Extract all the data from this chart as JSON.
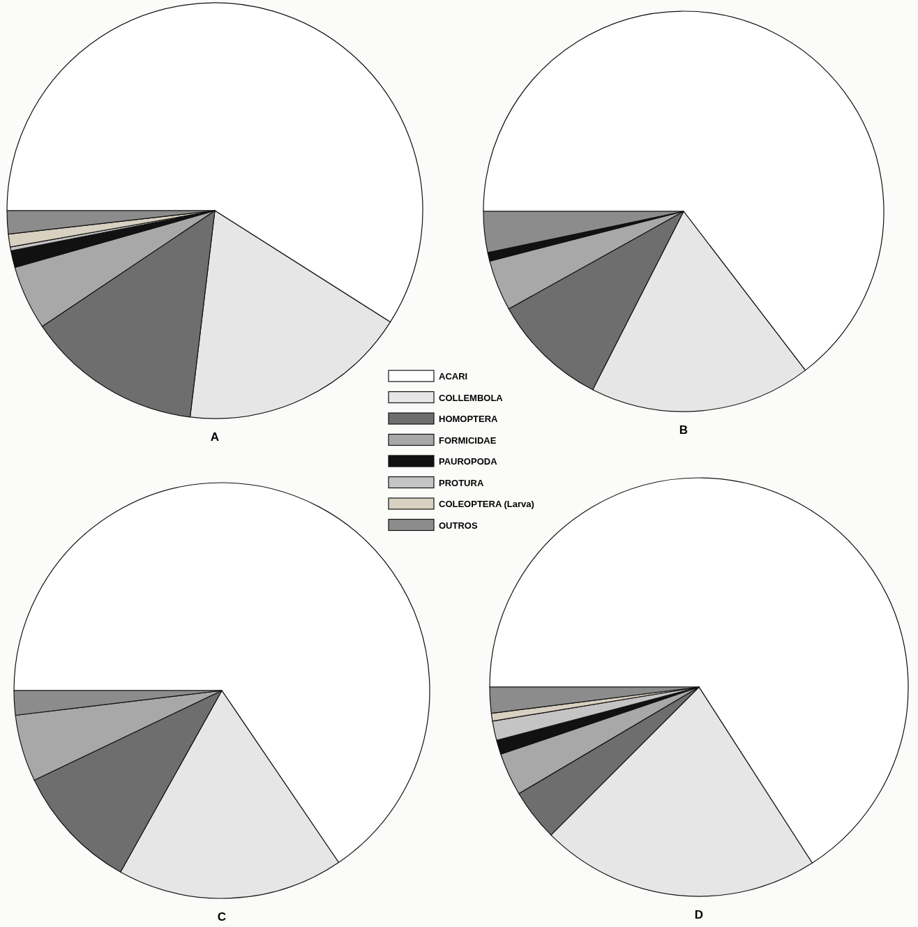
{
  "chart_data": [
    {
      "type": "pie",
      "title": "A",
      "legend": "right",
      "categories": [
        "ACARI",
        "COLLEMBOLA",
        "HOMOPTERA",
        "FORMICIDAE",
        "PAUROPODA",
        "PROTURA",
        "COLEOPTERA (Larva)",
        "OUTROS"
      ],
      "values": [
        59.0,
        17.9,
        13.7,
        5.0,
        1.3,
        0.3,
        1.0,
        1.8
      ],
      "colors": [
        "#ffffff",
        "#e6e6e6",
        "#6e6e6e",
        "#a8a8a8",
        "#111111",
        "#c4c4c4",
        "#d8d0c0",
        "#8c8c8c"
      ]
    },
    {
      "type": "pie",
      "title": "B",
      "categories": [
        null,
        null,
        null,
        null,
        null,
        null,
        null,
        null
      ],
      "values": [
        64.6,
        17.9,
        9.4,
        4.1,
        0.7,
        0,
        0,
        3.3
      ],
      "colors": [
        "#ffffff",
        "#e6e6e6",
        "#6e6e6e",
        "#a8a8a8",
        "#111111",
        "#c4c4c4",
        "#d8d0c0",
        "#8c8c8c"
      ]
    },
    {
      "type": "pie",
      "title": "C",
      "categories": [
        null,
        null,
        null,
        null,
        null,
        null,
        null,
        null
      ],
      "values": [
        65.5,
        17.6,
        9.8,
        5.2,
        0,
        0,
        0,
        1.9
      ],
      "colors": [
        "#ffffff",
        "#e6e6e6",
        "#6e6e6e",
        "#a8a8a8",
        "#111111",
        "#c4c4c4",
        "#d8d0c0",
        "#8c8c8c"
      ]
    },
    {
      "type": "pie",
      "title": "D",
      "categories": [
        null,
        null,
        null,
        null,
        null,
        null,
        null,
        null
      ],
      "values": [
        65.9,
        21.6,
        4.0,
        3.3,
        1.1,
        1.5,
        0.6,
        2.0
      ],
      "colors": [
        "#ffffff",
        "#e6e6e6",
        "#6e6e6e",
        "#a8a8a8",
        "#111111",
        "#c4c4c4",
        "#d8d0c0",
        "#8c8c8c"
      ]
    }
  ]
}
